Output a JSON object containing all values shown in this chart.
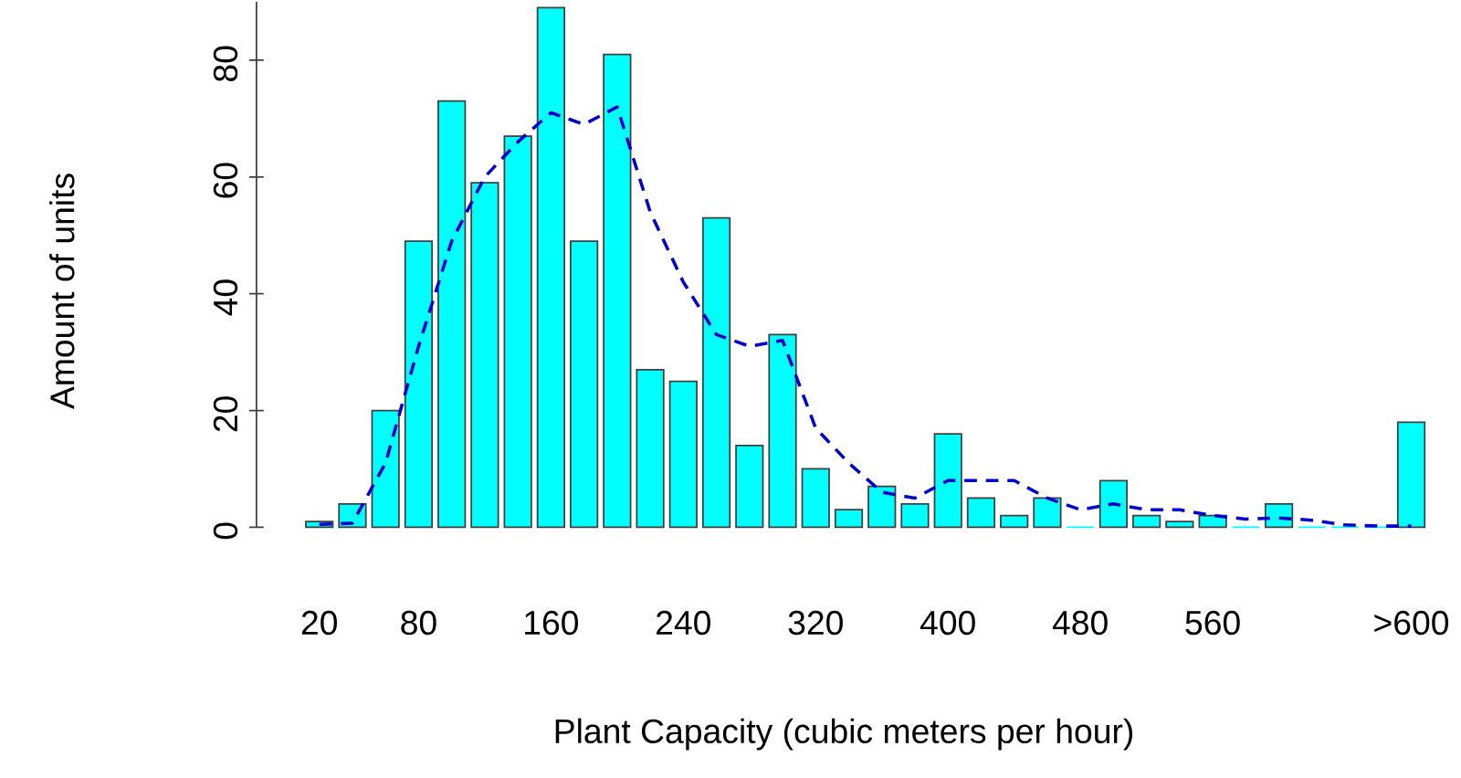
{
  "chart_data": {
    "type": "bar",
    "xlabel": "Plant Capacity (cubic meters per hour)",
    "ylabel": "Amount of units",
    "categories": [
      "20",
      null,
      null,
      "80",
      null,
      null,
      null,
      "160",
      null,
      null,
      null,
      "240",
      null,
      null,
      null,
      "320",
      null,
      null,
      null,
      "400",
      null,
      null,
      null,
      "480",
      null,
      null,
      null,
      "560",
      null,
      null,
      null,
      null,
      null,
      ">600"
    ],
    "series": [
      {
        "color": "#00ffff",
        "values": [
          1,
          4,
          20,
          49,
          73,
          59,
          67,
          89,
          49,
          81,
          27,
          25,
          53,
          14,
          33,
          10,
          3,
          7,
          4,
          16,
          5,
          2,
          5,
          0,
          8,
          2,
          1,
          2,
          0,
          4,
          0,
          0,
          0,
          18
        ]
      },
      {
        "type": "line",
        "color": "#0000cc",
        "line_style": "dashed",
        "marker": "none",
        "values": [
          0.5,
          0.7,
          11,
          31,
          49,
          60,
          66,
          71,
          69,
          72,
          54,
          42,
          33,
          31,
          32,
          17,
          11,
          6,
          5,
          8,
          8,
          8,
          5,
          3,
          4,
          3,
          3,
          2,
          1.4,
          1.6,
          1.2,
          0.4,
          0.2,
          0.2
        ]
      }
    ],
    "ylim": [
      0,
      90
    ],
    "yticks": [
      0,
      20,
      40,
      60,
      80
    ]
  }
}
